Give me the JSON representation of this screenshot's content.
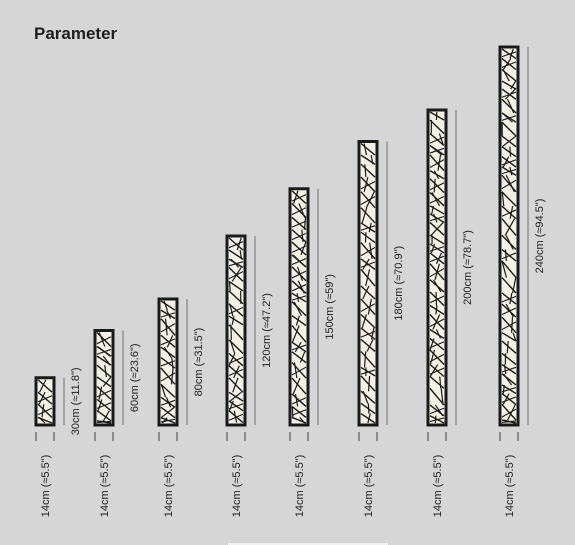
{
  "title": "Parameter",
  "lamps": [
    {
      "height_label": "30cm (≈11.8\")",
      "width_label": "14cm (≈5.5\")",
      "height_cm": 30
    },
    {
      "height_label": "60cm (≈23.6\")",
      "width_label": "14cm (≈5.5\")",
      "height_cm": 60
    },
    {
      "height_label": "80cm (≈31.5\")",
      "width_label": "14cm (≈5.5\")",
      "height_cm": 80
    },
    {
      "height_label": "120cm (≈47.2\")",
      "width_label": "14cm (≈5.5\")",
      "height_cm": 120
    },
    {
      "height_label": "150cm (≈59\")",
      "width_label": "14cm (≈5.5\")",
      "height_cm": 150
    },
    {
      "height_label": "180cm (≈70.9\")",
      "width_label": "14cm (≈5.5\")",
      "height_cm": 180
    },
    {
      "height_label": "200cm (≈78.7\")",
      "width_label": "14cm (≈5.5\")",
      "height_cm": 200
    },
    {
      "height_label": "240cm (≈94.5\")",
      "width_label": "14cm (≈5.5\")",
      "height_cm": 240
    }
  ],
  "colors": {
    "background": "#d6d6d6",
    "frame": "#1a1a1a",
    "panel": "#f3f0e4",
    "text": "#222222"
  }
}
